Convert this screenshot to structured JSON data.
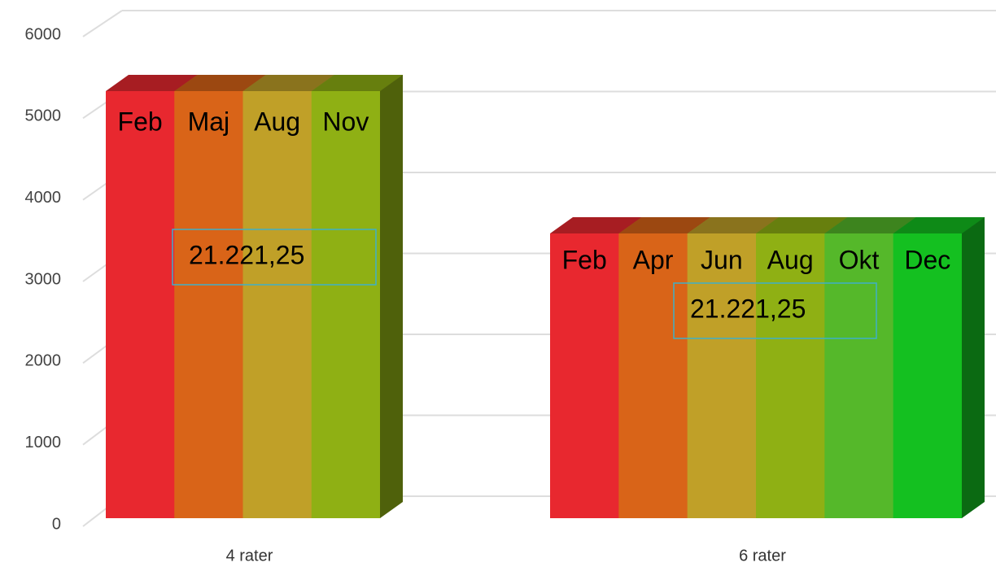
{
  "chart_data": {
    "type": "bar3d",
    "categories": [
      "4 rater",
      "6 rater"
    ],
    "ylim": [
      0,
      6000
    ],
    "yticks": [
      0,
      1000,
      2000,
      3000,
      4000,
      5000,
      6000
    ],
    "grid": true,
    "bars": [
      {
        "labels": [
          "Feb",
          "Maj",
          "Aug",
          "Nov"
        ],
        "colors": [
          "#e8282f",
          "#d96418",
          "#c0a028",
          "#8fb014"
        ],
        "values": [
          5250,
          5250,
          5250,
          5250
        ],
        "annotation": "21.221,25"
      },
      {
        "labels": [
          "Feb",
          "Apr",
          "Jun",
          "Aug",
          "Okt",
          "Dec"
        ],
        "colors": [
          "#e8282f",
          "#d96418",
          "#c0a028",
          "#8fb014",
          "#55b82a",
          "#14c020"
        ],
        "values": [
          3500,
          3500,
          3500,
          3500,
          3500,
          3500
        ],
        "annotation": "21.221,25"
      }
    ]
  }
}
